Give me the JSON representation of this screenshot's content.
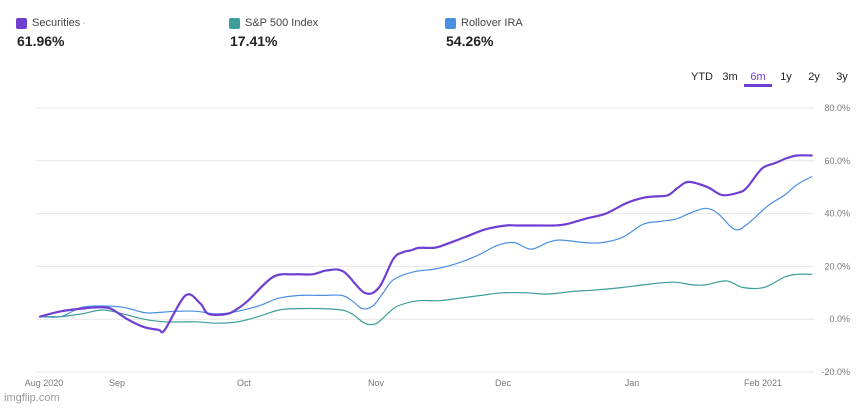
{
  "legend": [
    {
      "name": "Securities",
      "suffix": "·",
      "value": "61.96%",
      "color": "#6f3fd1"
    },
    {
      "name": "S&P 500 Index",
      "suffix": "",
      "value": "17.41%",
      "color": "#3b9e9a"
    },
    {
      "name": "Rollover IRA",
      "suffix": "",
      "value": "54.26%",
      "color": "#4a90e2"
    }
  ],
  "ranges": [
    "YTD",
    "3m",
    "6m",
    "1y",
    "2y",
    "3y"
  ],
  "active_range": "6m",
  "watermark": "imgflip.com",
  "chart_data": {
    "type": "line",
    "x_tick_labels": [
      "Aug 2020",
      "Sep",
      "Oct",
      "Nov",
      "Dec",
      "Jan",
      "Feb 2021"
    ],
    "y_tick_labels": [
      "80.0%",
      "60.0%",
      "40.0%",
      "20.0%",
      "0.0%",
      "-20.0%"
    ],
    "ylim": [
      -20,
      80
    ],
    "grid": true,
    "series": [
      {
        "name": "Securities",
        "color": "#6f3fd1",
        "width": 2.2,
        "x": [
          0,
          10,
          20,
          28,
          34,
          42,
          50,
          57,
          60,
          70,
          77,
          81,
          90,
          95,
          100,
          112,
          122,
          131,
          138,
          146,
          156,
          163,
          170,
          175,
          178,
          182,
          188,
          192,
          204,
          214,
          224,
          229,
          235,
          241,
          247,
          253,
          262,
          272,
          282,
          290,
          296,
          302,
          307,
          312,
          321,
          328,
          336,
          340,
          347,
          353,
          356,
          359,
          364,
          371
        ],
        "y": [
          1,
          3,
          4,
          4.5,
          4,
          0,
          -3,
          -4,
          -4,
          9,
          6,
          2,
          2,
          4,
          7,
          16,
          17,
          17,
          18.5,
          18,
          10,
          12,
          23,
          25.5,
          26,
          27,
          27,
          27.5,
          31,
          34,
          35.5,
          35.5,
          35.5,
          35.5,
          35.5,
          36,
          38,
          40,
          44,
          46,
          46.5,
          47,
          50,
          52,
          50,
          47,
          48,
          50,
          57,
          59,
          60,
          61,
          62,
          62
        ]
      },
      {
        "name": "S&P 500 Index",
        "color": "#3b9e9a",
        "width": 1.2,
        "x": [
          0,
          10,
          20,
          30,
          40,
          50,
          60,
          75,
          85,
          95,
          105,
          115,
          125,
          135,
          145,
          150,
          155,
          158,
          162,
          167,
          172,
          182,
          192,
          202,
          212,
          222,
          234,
          244,
          256,
          266,
          280,
          290,
          304,
          314,
          320,
          330,
          338,
          348,
          358,
          364,
          371
        ],
        "y": [
          1,
          1,
          2,
          3.5,
          2,
          0,
          -1,
          -1,
          -1.5,
          -1,
          1,
          3.5,
          4,
          4,
          3.5,
          2,
          -1,
          -2,
          -1.5,
          2,
          5,
          7,
          7,
          8,
          9,
          10,
          10,
          9.5,
          10.5,
          11,
          12,
          13,
          14,
          13,
          13,
          14.5,
          12,
          12,
          16,
          17,
          17
        ]
      },
      {
        "name": "Rollover IRA",
        "color": "#4a90e2",
        "width": 1.2,
        "x": [
          0,
          10,
          20,
          30,
          40,
          50,
          56,
          65,
          75,
          85,
          95,
          105,
          115,
          125,
          135,
          145,
          150,
          155,
          160,
          165,
          170,
          180,
          190,
          200,
          210,
          220,
          228,
          236,
          244,
          250,
          262,
          270,
          280,
          290,
          298,
          306,
          312,
          320,
          326,
          334,
          340,
          350,
          358,
          364,
          371
        ],
        "y": [
          1,
          1,
          4.5,
          5,
          4.5,
          2.5,
          2.5,
          3,
          3,
          2,
          3,
          5,
          8,
          9,
          9,
          9,
          7,
          4,
          5,
          10,
          15,
          18,
          19,
          21,
          24,
          28,
          29,
          26.5,
          29,
          30,
          29,
          29,
          31,
          36,
          37,
          38,
          40,
          42,
          40,
          34,
          36,
          43,
          47,
          51,
          54
        ]
      }
    ]
  }
}
